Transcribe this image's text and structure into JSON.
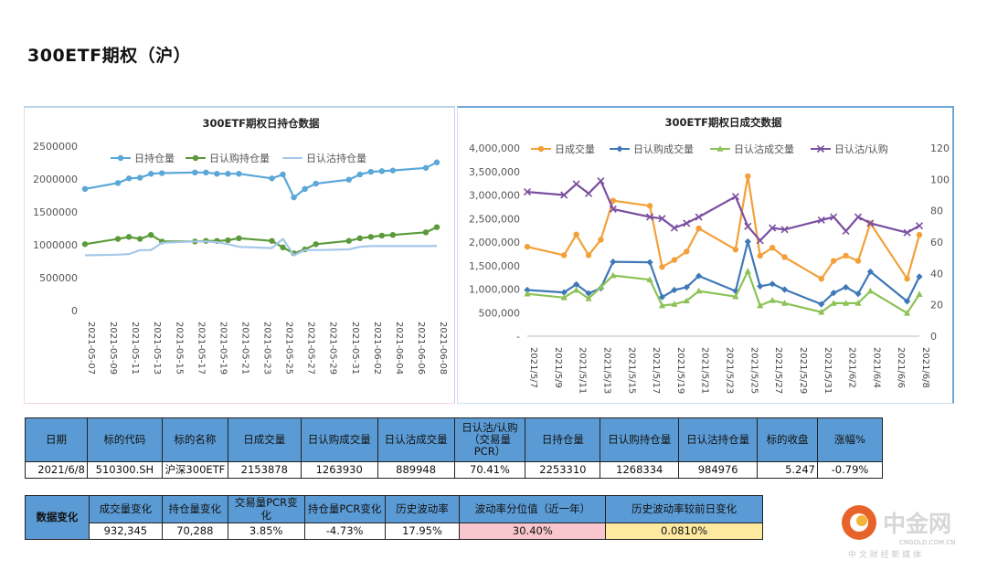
{
  "page": {
    "title": "300ETF期权（沪）"
  },
  "chart_data": [
    {
      "type": "line",
      "title": "300ETF期权日持仓数据",
      "categories": [
        "2021-05-07",
        "2021-05-10",
        "2021-05-11",
        "2021-05-12",
        "2021-05-13",
        "2021-05-14",
        "2021-05-17",
        "2021-05-18",
        "2021-05-19",
        "2021-05-20",
        "2021-05-21",
        "2021-05-24",
        "2021-05-25",
        "2021-05-26",
        "2021-05-27",
        "2021-05-28",
        "2021-05-31",
        "2021-06-01",
        "2021-06-02",
        "2021-06-03",
        "2021-06-04",
        "2021-06-07",
        "2021-06-08"
      ],
      "x_ticks": [
        "2021-05-07",
        "2021-05-09",
        "2021-05-11",
        "2021-05-13",
        "2021-05-15",
        "2021-05-17",
        "2021-05-19",
        "2021-05-21",
        "2021-05-23",
        "2021-05-25",
        "2021-05-27",
        "2021-05-29",
        "2021-05-31",
        "2021-06-02",
        "2021-06-04",
        "2021-06-06",
        "2021-06-08"
      ],
      "y_ticks": [
        "0",
        "500000",
        "1000000",
        "1500000",
        "2000000",
        "2500000"
      ],
      "ylim": [
        0,
        2500000
      ],
      "legend": "top",
      "series": [
        {
          "name": "日持仓量",
          "color": "#5ba7d8",
          "marker": true,
          "values": [
            1850000,
            1940000,
            2010000,
            2020000,
            2080000,
            2090000,
            2100000,
            2100000,
            2080000,
            2080000,
            2080000,
            2010000,
            2070000,
            1720000,
            1850000,
            1930000,
            1990000,
            2070000,
            2110000,
            2120000,
            2130000,
            2170000,
            2253310
          ]
        },
        {
          "name": "日认购持仓量",
          "color": "#5a9a3a",
          "marker": true,
          "values": [
            1010000,
            1090000,
            1120000,
            1090000,
            1150000,
            1050000,
            1050000,
            1060000,
            1060000,
            1070000,
            1100000,
            1060000,
            960000,
            870000,
            930000,
            1010000,
            1060000,
            1100000,
            1120000,
            1140000,
            1150000,
            1190000,
            1268334
          ]
        },
        {
          "name": "日认沽持仓量",
          "color": "#a6c8ea",
          "marker": false,
          "values": [
            840000,
            850000,
            860000,
            920000,
            920000,
            1030000,
            1050000,
            1050000,
            1040000,
            1010000,
            970000,
            950000,
            1090000,
            840000,
            920000,
            920000,
            930000,
            970000,
            980000,
            980000,
            980000,
            980000,
            984976
          ]
        }
      ]
    },
    {
      "type": "line",
      "title": "300ETF期权日成交数据",
      "categories": [
        "2021-05-07",
        "2021-05-10",
        "2021-05-11",
        "2021-05-12",
        "2021-05-13",
        "2021-05-14",
        "2021-05-17",
        "2021-05-18",
        "2021-05-19",
        "2021-05-20",
        "2021-05-21",
        "2021-05-24",
        "2021-05-25",
        "2021-05-26",
        "2021-05-27",
        "2021-05-28",
        "2021-05-31",
        "2021-06-01",
        "2021-06-02",
        "2021-06-03",
        "2021-06-04",
        "2021-06-07",
        "2021-06-08"
      ],
      "x_ticks": [
        "2021/5/7",
        "2021/5/9",
        "2021/5/11",
        "2021/5/13",
        "2021/5/15",
        "2021/5/17",
        "2021/5/19",
        "2021/5/21",
        "2021/5/23",
        "2021/5/25",
        "2021/5/27",
        "2021/5/29",
        "2021/5/31",
        "2021/6/2",
        "2021/6/4",
        "2021/6/6",
        "2021/6/8"
      ],
      "y_ticks": [
        "-",
        "500,000",
        "1,000,000",
        "1,500,000",
        "2,000,000",
        "2,500,000",
        "3,000,000",
        "3,500,000",
        "4,000,000"
      ],
      "y2_ticks": [
        "0",
        "20",
        "40",
        "60",
        "80",
        "100",
        "120"
      ],
      "ylim": [
        0,
        4000000
      ],
      "y2lim": [
        0,
        120
      ],
      "legend": "top",
      "series": [
        {
          "name": "日成交量",
          "color": "#f3a03a",
          "marker": "circle",
          "axis": "left",
          "values": [
            1900000,
            1720000,
            2160000,
            1720000,
            2050000,
            2880000,
            2770000,
            1470000,
            1620000,
            1800000,
            2290000,
            1840000,
            3400000,
            1710000,
            1880000,
            1680000,
            1220000,
            1600000,
            1710000,
            1600000,
            2400000,
            1220000,
            2153878
          ]
        },
        {
          "name": "日认购成交量",
          "color": "#3f78b8",
          "marker": "diamond",
          "axis": "left",
          "values": [
            980000,
            930000,
            1100000,
            910000,
            1020000,
            1580000,
            1570000,
            830000,
            980000,
            1040000,
            1280000,
            960000,
            2010000,
            1060000,
            1110000,
            990000,
            680000,
            920000,
            1040000,
            900000,
            1370000,
            740000,
            1263930
          ]
        },
        {
          "name": "日认沽成交量",
          "color": "#8cc256",
          "marker": "triangle",
          "axis": "left",
          "values": [
            900000,
            820000,
            980000,
            800000,
            1040000,
            1290000,
            1200000,
            650000,
            680000,
            750000,
            960000,
            840000,
            1380000,
            650000,
            760000,
            700000,
            510000,
            700000,
            700000,
            700000,
            960000,
            490000,
            889948
          ]
        },
        {
          "name": "日认沽/认购",
          "color": "#7b4fa0",
          "marker": "x",
          "axis": "right",
          "values": [
            92,
            90,
            97,
            91,
            99,
            81,
            76,
            75,
            69,
            72,
            76,
            89,
            70,
            61,
            69,
            68,
            74,
            76,
            67,
            76,
            72,
            66,
            70.41
          ]
        }
      ]
    }
  ],
  "table1": {
    "headers": [
      "日期",
      "标的代码",
      "标的名称",
      "日成交量",
      "日认购成交量",
      "日认沽成交量",
      "日认沽/认购（交易量PCR）",
      "日持仓量",
      "日认购持仓量",
      "日认沽持仓量",
      "标的收盘",
      "涨幅%"
    ],
    "row": [
      "2021/6/8",
      "510300.SH",
      "沪深300ETF",
      "2153878",
      "1263930",
      "889948",
      "70.41%",
      "2253310",
      "1268334",
      "984976",
      "5.247",
      "-0.79%"
    ]
  },
  "table2": {
    "side_label": "数据变化",
    "headers": [
      "成交量变化",
      "持仓量变化",
      "交易量PCR变化",
      "持仓量PCR变化",
      "历史波动率",
      "波动率分位值（近一年）",
      "历史波动率较前日变化"
    ],
    "row": [
      "932,345",
      "70,288",
      "3.85%",
      "-4.73%",
      "17.95%",
      "30.40%",
      "0.0810%"
    ]
  },
  "logo": {
    "name": "中金网",
    "domain": "CNGOLD.COM.CN",
    "slogan": "中 文 财 经 新 媒 体"
  }
}
